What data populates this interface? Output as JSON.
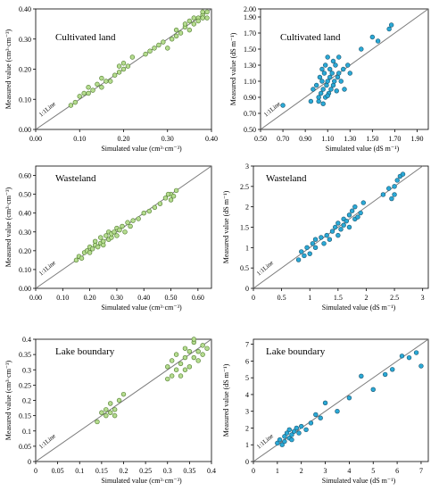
{
  "colors": {
    "green_fill": "#b5dc8f",
    "green_edge": "#4f7a2d",
    "blue_fill": "#2aa9d6",
    "blue_edge": "#1c5670",
    "axis": "#000000",
    "line": "#7a7a7a"
  },
  "chart_data": [
    {
      "type": "scatter",
      "title": "Cultivated land",
      "xlabel": "Simulated value (cm³·cm⁻³)",
      "ylabel": "Measured value (cm³·cm⁻³)",
      "xlim": [
        0,
        0.4
      ],
      "ylim": [
        0,
        0.4
      ],
      "ref_line_label": "1:1Line",
      "x_ticks": [
        "0.00",
        "0.10",
        "0.20",
        "0.30",
        "0.40"
      ],
      "y_ticks": [
        "0.00",
        "0.10",
        "0.20",
        "0.30",
        "0.40"
      ],
      "marker": "green",
      "x": [
        0.08,
        0.09,
        0.1,
        0.11,
        0.12,
        0.12,
        0.13,
        0.14,
        0.15,
        0.15,
        0.16,
        0.17,
        0.18,
        0.19,
        0.19,
        0.2,
        0.2,
        0.21,
        0.22,
        0.25,
        0.26,
        0.27,
        0.28,
        0.29,
        0.3,
        0.31,
        0.32,
        0.32,
        0.33,
        0.34,
        0.35,
        0.35,
        0.36,
        0.37,
        0.37,
        0.38,
        0.38,
        0.39,
        0.39,
        0.38,
        0.36,
        0.34
      ],
      "y": [
        0.08,
        0.09,
        0.11,
        0.12,
        0.12,
        0.14,
        0.13,
        0.15,
        0.14,
        0.17,
        0.16,
        0.16,
        0.18,
        0.19,
        0.21,
        0.2,
        0.22,
        0.21,
        0.24,
        0.25,
        0.26,
        0.27,
        0.28,
        0.29,
        0.27,
        0.3,
        0.31,
        0.33,
        0.32,
        0.34,
        0.33,
        0.36,
        0.35,
        0.37,
        0.36,
        0.38,
        0.37,
        0.39,
        0.37,
        0.39,
        0.37,
        0.35
      ]
    },
    {
      "type": "scatter",
      "title": "Cultivated land",
      "xlabel": "Simulated value (dS m⁻¹)",
      "ylabel": "Measured value (dS m⁻¹)",
      "xlim": [
        0.5,
        2.0
      ],
      "ylim": [
        0.5,
        2.0
      ],
      "ref_line_label": "1:1Line",
      "x_ticks": [
        "0.50",
        "0.70",
        "0.90",
        "1.10",
        "1.30",
        "1.50",
        "1.70",
        "1.90"
      ],
      "y_ticks": [
        "0.50",
        "0.70",
        "0.90",
        "1.10",
        "1.30",
        "1.50",
        "1.70",
        "1.90",
        "2.00"
      ],
      "marker": "blue",
      "x": [
        0.7,
        0.95,
        0.97,
        1.0,
        1.02,
        1.03,
        1.04,
        1.05,
        1.05,
        1.06,
        1.07,
        1.08,
        1.08,
        1.09,
        1.1,
        1.1,
        1.11,
        1.12,
        1.12,
        1.13,
        1.14,
        1.15,
        1.15,
        1.16,
        1.17,
        1.18,
        1.19,
        1.2,
        1.2,
        1.22,
        1.24,
        1.25,
        1.28,
        1.3,
        1.4,
        1.5,
        1.55,
        1.65,
        1.67,
        1.02,
        1.06,
        1.1
      ],
      "y": [
        0.8,
        0.85,
        1.0,
        1.05,
        0.9,
        1.15,
        0.95,
        1.1,
        1.25,
        1.0,
        1.2,
        0.9,
        1.3,
        1.05,
        1.1,
        1.4,
        0.95,
        1.15,
        1.25,
        1.0,
        1.2,
        1.05,
        1.35,
        1.1,
        1.3,
        0.98,
        1.15,
        1.4,
        1.2,
        1.1,
        1.25,
        1.0,
        1.3,
        1.2,
        1.5,
        1.65,
        1.6,
        1.75,
        1.8,
        0.85,
        0.82,
        0.92
      ]
    },
    {
      "type": "scatter",
      "title": "Wasteland",
      "xlabel": "Simulated value (cm³·cm⁻³)",
      "ylabel": "Measured value (cm³·cm⁻³)",
      "xlim": [
        0,
        0.65
      ],
      "ylim": [
        0,
        0.65
      ],
      "ref_line_label": "1:1Line",
      "x_ticks": [
        "0.00",
        "0.10",
        "0.20",
        "0.30",
        "0.40",
        "0.50",
        "0.60"
      ],
      "y_ticks": [
        "0.00",
        "0.10",
        "0.20",
        "0.30",
        "0.40",
        "0.50",
        "0.60"
      ],
      "marker": "green",
      "x": [
        0.15,
        0.16,
        0.17,
        0.18,
        0.19,
        0.2,
        0.2,
        0.21,
        0.22,
        0.22,
        0.23,
        0.24,
        0.24,
        0.25,
        0.25,
        0.26,
        0.27,
        0.27,
        0.28,
        0.28,
        0.29,
        0.3,
        0.3,
        0.31,
        0.32,
        0.33,
        0.34,
        0.35,
        0.36,
        0.38,
        0.4,
        0.42,
        0.44,
        0.46,
        0.48,
        0.5,
        0.5,
        0.52,
        0.51,
        0.49
      ],
      "y": [
        0.15,
        0.17,
        0.16,
        0.19,
        0.2,
        0.19,
        0.22,
        0.21,
        0.23,
        0.25,
        0.22,
        0.24,
        0.27,
        0.25,
        0.23,
        0.28,
        0.26,
        0.3,
        0.27,
        0.29,
        0.3,
        0.28,
        0.32,
        0.31,
        0.33,
        0.3,
        0.35,
        0.33,
        0.36,
        0.37,
        0.4,
        0.41,
        0.43,
        0.45,
        0.48,
        0.47,
        0.5,
        0.52,
        0.49,
        0.5
      ]
    },
    {
      "type": "scatter",
      "title": "Wasteland",
      "xlabel": "Simulated value (dS m⁻¹)",
      "ylabel": "Measured value (dS m⁻¹)",
      "xlim": [
        0,
        3.1
      ],
      "ylim": [
        0,
        3.0
      ],
      "ref_line_label": "1:1Line",
      "x_ticks": [
        "0",
        "0.5",
        "1",
        "1.5",
        "2",
        "2.5",
        "3"
      ],
      "y_ticks": [
        "0",
        "0.5",
        "1",
        "1.5",
        "2",
        "2.5",
        "3"
      ],
      "marker": "blue",
      "x": [
        0.8,
        0.85,
        0.9,
        0.95,
        1.0,
        1.05,
        1.1,
        1.1,
        1.2,
        1.25,
        1.3,
        1.35,
        1.4,
        1.45,
        1.5,
        1.5,
        1.55,
        1.6,
        1.6,
        1.65,
        1.7,
        1.7,
        1.75,
        1.8,
        1.8,
        1.85,
        1.9,
        1.95,
        2.3,
        2.4,
        2.5,
        2.5,
        2.55,
        2.6,
        2.65,
        2.45
      ],
      "y": [
        0.7,
        0.9,
        0.8,
        1.0,
        0.85,
        1.1,
        1.2,
        1.0,
        1.25,
        1.1,
        1.3,
        1.2,
        1.4,
        1.5,
        1.3,
        1.6,
        1.45,
        1.7,
        1.55,
        1.65,
        1.8,
        1.5,
        1.9,
        1.7,
        2.0,
        1.75,
        1.85,
        2.1,
        2.3,
        2.45,
        2.5,
        2.3,
        2.65,
        2.75,
        2.8,
        2.2
      ]
    },
    {
      "type": "scatter",
      "title": "Lake boundary",
      "xlabel": "Simulated value (cm³·cm⁻³)",
      "ylabel": "Measured value (cm³·cm⁻³)",
      "xlim": [
        0,
        0.4
      ],
      "ylim": [
        0,
        0.4
      ],
      "ref_line_label": "1:1Line",
      "x_ticks": [
        "0",
        "0.05",
        "0.1",
        "0.15",
        "0.2",
        "0.25",
        "0.3",
        "0.35",
        "0.4"
      ],
      "y_ticks": [
        "0",
        "0.05",
        "0.1",
        "0.15",
        "0.2",
        "0.25",
        "0.3",
        "0.35",
        "0.4"
      ],
      "marker": "green",
      "x": [
        0.14,
        0.15,
        0.16,
        0.16,
        0.17,
        0.17,
        0.18,
        0.18,
        0.19,
        0.2,
        0.3,
        0.3,
        0.31,
        0.31,
        0.32,
        0.32,
        0.33,
        0.33,
        0.34,
        0.34,
        0.35,
        0.35,
        0.36,
        0.36,
        0.37,
        0.37,
        0.38,
        0.38,
        0.39,
        0.36,
        0.34
      ],
      "y": [
        0.13,
        0.16,
        0.15,
        0.17,
        0.16,
        0.19,
        0.17,
        0.15,
        0.2,
        0.22,
        0.27,
        0.31,
        0.28,
        0.33,
        0.3,
        0.35,
        0.32,
        0.28,
        0.34,
        0.37,
        0.31,
        0.36,
        0.34,
        0.39,
        0.36,
        0.33,
        0.38,
        0.35,
        0.37,
        0.4,
        0.3
      ]
    },
    {
      "type": "scatter",
      "title": "Lake boundary",
      "xlabel": "Simulated value (dS m⁻¹)",
      "ylabel": "Measured value (dS m⁻¹)",
      "xlim": [
        0,
        7.3
      ],
      "ylim": [
        0,
        7.3
      ],
      "ref_line_label": "1:1Line",
      "x_ticks": [
        "0",
        "1",
        "2",
        "3",
        "4",
        "5",
        "6",
        "7"
      ],
      "y_ticks": [
        "0",
        "1",
        "2",
        "3",
        "4",
        "5",
        "6",
        "7"
      ],
      "marker": "blue",
      "x": [
        1.0,
        1.1,
        1.2,
        1.3,
        1.3,
        1.4,
        1.5,
        1.5,
        1.6,
        1.6,
        1.7,
        1.8,
        1.9,
        2.0,
        2.2,
        2.4,
        2.6,
        2.8,
        3.0,
        3.5,
        4.0,
        4.5,
        5.0,
        5.5,
        5.8,
        6.2,
        6.5,
        6.8,
        7.0
      ],
      "y": [
        1.1,
        1.3,
        1.0,
        1.5,
        1.2,
        1.7,
        1.4,
        1.9,
        1.6,
        1.3,
        1.8,
        2.0,
        1.7,
        2.1,
        1.9,
        2.3,
        2.8,
        2.6,
        3.5,
        3.0,
        3.8,
        5.1,
        4.3,
        5.2,
        5.5,
        6.3,
        6.2,
        6.5,
        5.7
      ]
    }
  ]
}
